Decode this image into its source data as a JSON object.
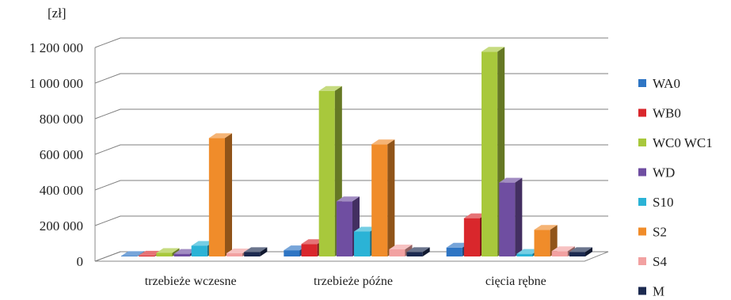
{
  "chart_data": {
    "type": "bar",
    "unit_label": "[zł]",
    "categories": [
      "trzebieże wczesne",
      "trzebieże późne",
      "cięcia rębne"
    ],
    "series": [
      {
        "name": "WA0",
        "color": "#2e75c4",
        "values": [
          3000,
          35000,
          50000
        ]
      },
      {
        "name": "WB0",
        "color": "#d9272c",
        "values": [
          5000,
          70000,
          215000
        ]
      },
      {
        "name": "WC0 WC1",
        "color": "#a8c83c",
        "values": [
          20000,
          930000,
          1150000
        ]
      },
      {
        "name": "WD",
        "color": "#6f4ea1",
        "values": [
          15000,
          310000,
          415000
        ]
      },
      {
        "name": "S10",
        "color": "#2bb3d6",
        "values": [
          60000,
          140000,
          15000
        ]
      },
      {
        "name": "S2",
        "color": "#f08c2a",
        "values": [
          665000,
          630000,
          150000
        ]
      },
      {
        "name": "S4",
        "color": "#f2a1a1",
        "values": [
          18000,
          40000,
          30000
        ]
      },
      {
        "name": "M",
        "color": "#1c2a50",
        "values": [
          25000,
          25000,
          25000
        ]
      }
    ],
    "yticks": [
      "0",
      "200 000",
      "400 000",
      "600 000",
      "800 000",
      "1 000 000",
      "1 200 000"
    ],
    "ylim": [
      0,
      1200000
    ],
    "grid": true,
    "legend_position": "right"
  }
}
